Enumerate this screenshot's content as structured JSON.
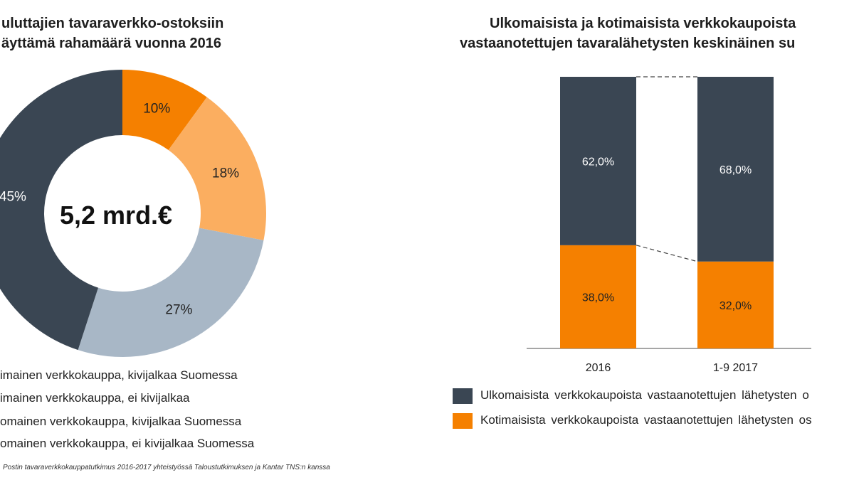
{
  "colors": {
    "dark": "#3a4653",
    "orange": "#f58000",
    "light_orange": "#fbae60",
    "gray_blue": "#a8b7c6"
  },
  "chart_data": [
    {
      "type": "pie",
      "title": [
        "uluttajien tavaraverkko-ostoksiin",
        "äyttämä rahamäärä vuonna 2016"
      ],
      "center_label": "5,2 mrd.€",
      "slices": [
        {
          "name": "imainen verkkokauppa, kivijalkaa Suomessa",
          "value": 10,
          "label": "10%",
          "color": "#f58000"
        },
        {
          "name": "imainen verkkokauppa, ei kivijalkaa",
          "value": 18,
          "label": "18%",
          "color": "#fbae60"
        },
        {
          "name": "omainen verkkokauppa, kivijalkaa Suomessa",
          "value": 27,
          "label": "27%",
          "color": "#a8b7c6"
        },
        {
          "name": "omainen verkkokauppa, ei kivijalkaa Suomessa",
          "value": 45,
          "label": "45%",
          "color": "#3a4653"
        }
      ],
      "legend_placement": "bottom"
    },
    {
      "type": "bar",
      "stacked": true,
      "title": [
        "Ulkomaisista ja kotimaisista verkkokaupoista",
        "vastaanotettujen tavaralähetysten keskinäinen su"
      ],
      "categories": [
        "2016",
        "1-9 2017"
      ],
      "series": [
        {
          "name": "Kotimaisista verkkokaupoista vastaanotettujen lähetysten os",
          "values": [
            38.0,
            32.0
          ],
          "labels": [
            "38,0%",
            "32,0%"
          ],
          "color": "#f58000"
        },
        {
          "name": "Ulkomaisista verkkokaupoista vastaanotettujen lähetysten o",
          "values": [
            62.0,
            68.0
          ],
          "labels": [
            "62,0%",
            "68,0%"
          ],
          "color": "#3a4653"
        }
      ],
      "ylim": [
        0,
        100
      ],
      "legend_placement": "bottom"
    }
  ],
  "source": "Postin tavaraverkkokauppatutkimus 2016-2017 yhteistyössä Taloustutkimuksen ja Kantar TNS:n kanssa"
}
